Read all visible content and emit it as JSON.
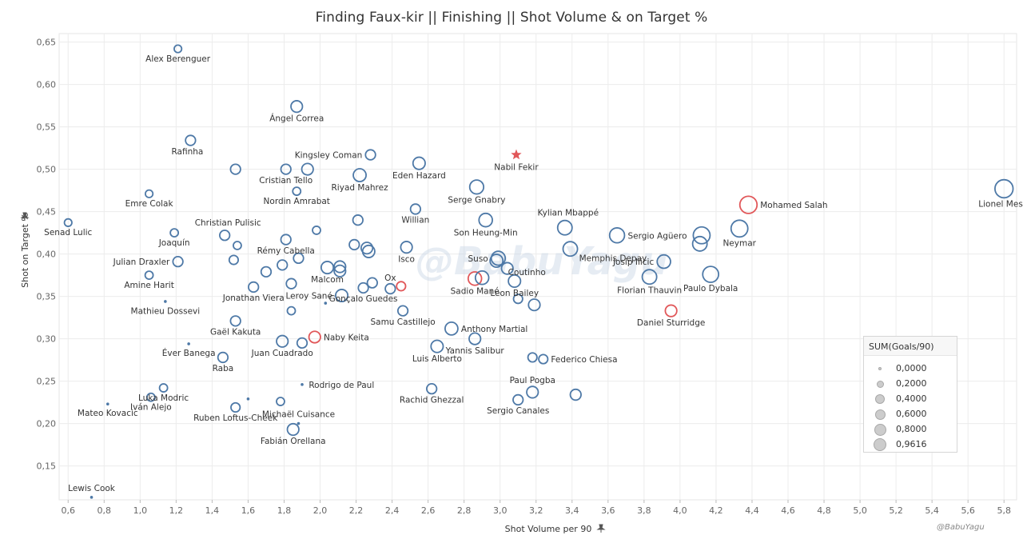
{
  "title": "Finding Faux-kir  ||  Finishing  ||  Shot Volume & on Target %",
  "watermark": "@BabuYagu",
  "signature": "@BabuYagu",
  "chart_data": {
    "type": "scatter",
    "title": "Finding Faux-kir  ||  Finishing  ||  Shot Volume & on Target %",
    "xlabel": "Shot Volume per 90",
    "ylabel": "Shot on Target %",
    "xlim": [
      0.55,
      5.87
    ],
    "ylim": [
      0.11,
      0.66
    ],
    "x_ticks": [
      "0,6",
      "0,8",
      "1,0",
      "1,2",
      "1,4",
      "1,6",
      "1,8",
      "2,0",
      "2,2",
      "2,4",
      "2,6",
      "2,8",
      "3,0",
      "3,2",
      "3,4",
      "3,6",
      "3,8",
      "4,0",
      "4,2",
      "4,4",
      "4,6",
      "4,8",
      "5,0",
      "5,2",
      "5,4",
      "5,6",
      "5,8"
    ],
    "y_ticks": [
      "0,15",
      "0,20",
      "0,25",
      "0,30",
      "0,35",
      "0,40",
      "0,45",
      "0,50",
      "0,55",
      "0,60",
      "0,65"
    ],
    "grid": true,
    "size_legend": {
      "title": "SUM(Goals/90)",
      "items": [
        "0,0000",
        "0,2000",
        "0,4000",
        "0,6000",
        "0,8000",
        "0,9616"
      ]
    },
    "colors": {
      "default": "#4e79a7",
      "highlight": "#e15759"
    },
    "points": [
      {
        "name": "Alex Berenguer",
        "x": 1.21,
        "y": 0.642,
        "size": 0.08
      },
      {
        "name": "Ángel Correa",
        "x": 1.87,
        "y": 0.574,
        "size": 0.3
      },
      {
        "name": "Rafinha",
        "x": 1.28,
        "y": 0.534,
        "size": 0.2
      },
      {
        "name": "Kingsley Coman",
        "x": 2.28,
        "y": 0.517,
        "size": 0.2
      },
      {
        "name": "Nabil Fekir",
        "x": 3.09,
        "y": 0.517,
        "size": 0.4,
        "highlight": true,
        "shape": "star"
      },
      {
        "name": "Eden Hazard",
        "x": 2.55,
        "y": 0.507,
        "size": 0.35
      },
      {
        "name": "Cristian Tello",
        "x": 1.81,
        "y": 0.5,
        "size": 0.2
      },
      {
        "name": "",
        "x": 1.53,
        "y": 0.5,
        "size": 0.2
      },
      {
        "name": "",
        "x": 1.93,
        "y": 0.5,
        "size": 0.3
      },
      {
        "name": "Riyad Mahrez",
        "x": 2.22,
        "y": 0.493,
        "size": 0.4
      },
      {
        "name": "Serge Gnabry",
        "x": 2.87,
        "y": 0.479,
        "size": 0.5
      },
      {
        "name": "Nordin Amrabat",
        "x": 1.87,
        "y": 0.474,
        "size": 0.1
      },
      {
        "name": "Lionel Messi",
        "x": 5.8,
        "y": 0.477,
        "size": 0.9616
      },
      {
        "name": "Emre Colak",
        "x": 1.05,
        "y": 0.471,
        "size": 0.08
      },
      {
        "name": "Mohamed Salah",
        "x": 4.38,
        "y": 0.458,
        "size": 0.85,
        "highlight": true
      },
      {
        "name": "Willian",
        "x": 2.53,
        "y": 0.453,
        "size": 0.2
      },
      {
        "name": "Kylian Mbappé",
        "x": 3.36,
        "y": 0.431,
        "size": 0.55
      },
      {
        "name": "Son Heung-Min",
        "x": 2.92,
        "y": 0.44,
        "size": 0.45
      },
      {
        "name": "",
        "x": 2.21,
        "y": 0.44,
        "size": 0.2
      },
      {
        "name": "Neymar",
        "x": 4.33,
        "y": 0.43,
        "size": 0.8
      },
      {
        "name": "Senad Lulic",
        "x": 0.6,
        "y": 0.437,
        "size": 0.08
      },
      {
        "name": "Christian Pulisic",
        "x": 1.47,
        "y": 0.422,
        "size": 0.2
      },
      {
        "name": "",
        "x": 1.98,
        "y": 0.428,
        "size": 0.1
      },
      {
        "name": "Joaquín",
        "x": 1.19,
        "y": 0.425,
        "size": 0.1
      },
      {
        "name": "Sergio Agüero",
        "x": 3.65,
        "y": 0.422,
        "size": 0.6
      },
      {
        "name": "",
        "x": 4.12,
        "y": 0.422,
        "size": 0.8
      },
      {
        "name": "",
        "x": 4.11,
        "y": 0.412,
        "size": 0.55
      },
      {
        "name": "Rémy Cabella",
        "x": 1.81,
        "y": 0.417,
        "size": 0.2
      },
      {
        "name": "",
        "x": 2.19,
        "y": 0.411,
        "size": 0.2
      },
      {
        "name": "",
        "x": 2.26,
        "y": 0.407,
        "size": 0.3
      },
      {
        "name": "",
        "x": 2.27,
        "y": 0.403,
        "size": 0.35
      },
      {
        "name": "Memphis Depay",
        "x": 3.39,
        "y": 0.406,
        "size": 0.55
      },
      {
        "name": "Isco",
        "x": 2.48,
        "y": 0.408,
        "size": 0.3
      },
      {
        "name": "",
        "x": 1.54,
        "y": 0.41,
        "size": 0.1
      },
      {
        "name": "Suso",
        "x": 2.99,
        "y": 0.395,
        "size": 0.5
      },
      {
        "name": "Coutinho",
        "x": 2.98,
        "y": 0.392,
        "size": 0.4
      },
      {
        "name": "Josip Ilicic",
        "x": 3.91,
        "y": 0.391,
        "size": 0.45
      },
      {
        "name": "Julian Draxler",
        "x": 1.21,
        "y": 0.391,
        "size": 0.2
      },
      {
        "name": "",
        "x": 1.52,
        "y": 0.393,
        "size": 0.15
      },
      {
        "name": "",
        "x": 1.88,
        "y": 0.395,
        "size": 0.2
      },
      {
        "name": "",
        "x": 1.79,
        "y": 0.387,
        "size": 0.2
      },
      {
        "name": "Malcom",
        "x": 2.04,
        "y": 0.384,
        "size": 0.35
      },
      {
        "name": "",
        "x": 2.11,
        "y": 0.385,
        "size": 0.3
      },
      {
        "name": "",
        "x": 2.11,
        "y": 0.38,
        "size": 0.3
      },
      {
        "name": "",
        "x": 1.7,
        "y": 0.379,
        "size": 0.2
      },
      {
        "name": "",
        "x": 3.04,
        "y": 0.383,
        "size": 0.3
      },
      {
        "name": "Amine Harit",
        "x": 1.05,
        "y": 0.375,
        "size": 0.1
      },
      {
        "name": "Florian Thauvin",
        "x": 3.83,
        "y": 0.373,
        "size": 0.55
      },
      {
        "name": "Paulo Dybala",
        "x": 4.17,
        "y": 0.376,
        "size": 0.7
      },
      {
        "name": "Sadio Mané",
        "x": 2.86,
        "y": 0.371,
        "size": 0.45,
        "highlight": true
      },
      {
        "name": "",
        "x": 2.9,
        "y": 0.372,
        "size": 0.45
      },
      {
        "name": "Leon Bailey",
        "x": 3.08,
        "y": 0.368,
        "size": 0.35
      },
      {
        "name": "",
        "x": 1.84,
        "y": 0.365,
        "size": 0.2
      },
      {
        "name": "",
        "x": 2.29,
        "y": 0.366,
        "size": 0.2
      },
      {
        "name": "Gonçalo Guedes",
        "x": 2.24,
        "y": 0.36,
        "size": 0.2
      },
      {
        "name": "Ox",
        "x": 2.39,
        "y": 0.359,
        "size": 0.2
      },
      {
        "name": "",
        "x": 2.45,
        "y": 0.362,
        "size": 0.15,
        "highlight": true
      },
      {
        "name": "Jonathan Viera",
        "x": 1.63,
        "y": 0.361,
        "size": 0.2
      },
      {
        "name": "Leroy Sané",
        "x": 2.12,
        "y": 0.351,
        "size": 0.35
      },
      {
        "name": "",
        "x": 3.1,
        "y": 0.347,
        "size": 0.15
      },
      {
        "name": "Mathieu Dossevi",
        "x": 1.14,
        "y": 0.344,
        "size": 0.06
      },
      {
        "name": "",
        "x": 2.03,
        "y": 0.342,
        "size": 0.06
      },
      {
        "name": "",
        "x": 3.19,
        "y": 0.34,
        "size": 0.3
      },
      {
        "name": "Samu Castillejo",
        "x": 2.46,
        "y": 0.333,
        "size": 0.2
      },
      {
        "name": "",
        "x": 1.84,
        "y": 0.333,
        "size": 0.1
      },
      {
        "name": "Daniel Sturridge",
        "x": 3.95,
        "y": 0.333,
        "size": 0.3,
        "highlight": true
      },
      {
        "name": "Gaël Kakuta",
        "x": 1.53,
        "y": 0.321,
        "size": 0.2
      },
      {
        "name": "Anthony Martial",
        "x": 2.73,
        "y": 0.312,
        "size": 0.4
      },
      {
        "name": "Naby Keita",
        "x": 1.97,
        "y": 0.302,
        "size": 0.3,
        "highlight": true
      },
      {
        "name": "Juan Cuadrado",
        "x": 1.79,
        "y": 0.297,
        "size": 0.3
      },
      {
        "name": "",
        "x": 1.9,
        "y": 0.295,
        "size": 0.2
      },
      {
        "name": "Éver Banega",
        "x": 1.27,
        "y": 0.294,
        "size": 0.04
      },
      {
        "name": "Yannis Salibur",
        "x": 2.86,
        "y": 0.3,
        "size": 0.3
      },
      {
        "name": "Luis Alberto",
        "x": 2.65,
        "y": 0.291,
        "size": 0.35
      },
      {
        "name": "Raba",
        "x": 1.46,
        "y": 0.278,
        "size": 0.2
      },
      {
        "name": "",
        "x": 3.18,
        "y": 0.278,
        "size": 0.15
      },
      {
        "name": "Federico Chiesa",
        "x": 3.24,
        "y": 0.276,
        "size": 0.15
      },
      {
        "name": "Rodrigo de Paul",
        "x": 1.9,
        "y": 0.246,
        "size": 0.06
      },
      {
        "name": "Luka Modric",
        "x": 1.13,
        "y": 0.242,
        "size": 0.1
      },
      {
        "name": "Rachid Ghezzal",
        "x": 2.62,
        "y": 0.241,
        "size": 0.2
      },
      {
        "name": "Paul Pogba",
        "x": 3.18,
        "y": 0.237,
        "size": 0.3
      },
      {
        "name": "",
        "x": 3.42,
        "y": 0.234,
        "size": 0.25
      },
      {
        "name": "Iván Alejo",
        "x": 1.06,
        "y": 0.231,
        "size": 0.1
      },
      {
        "name": "",
        "x": 1.6,
        "y": 0.229,
        "size": 0.06
      },
      {
        "name": "Sergio Canales",
        "x": 3.1,
        "y": 0.228,
        "size": 0.2
      },
      {
        "name": "",
        "x": 1.78,
        "y": 0.226,
        "size": 0.1
      },
      {
        "name": "Mateo Kovacic",
        "x": 0.82,
        "y": 0.223,
        "size": 0.04
      },
      {
        "name": "Ruben Loftus-Cheek",
        "x": 1.53,
        "y": 0.219,
        "size": 0.15
      },
      {
        "name": "Michaël Cuisance",
        "x": 1.88,
        "y": 0.2,
        "size": 0.04
      },
      {
        "name": "Fabián Orellana",
        "x": 1.85,
        "y": 0.193,
        "size": 0.3
      },
      {
        "name": "Lewis Cook",
        "x": 0.73,
        "y": 0.113,
        "size": 0.04
      }
    ]
  }
}
